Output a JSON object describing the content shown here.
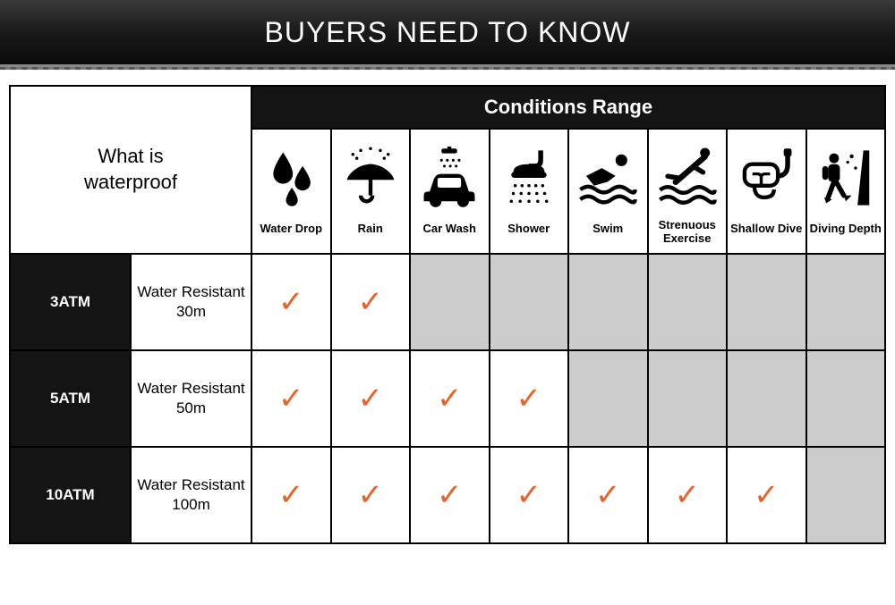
{
  "banner": {
    "title": "BUYERS NEED TO KNOW"
  },
  "table": {
    "corner_label": "What is\nwaterproof",
    "conditions_header": "Conditions Range",
    "check_color": "#e8632a",
    "grey_color": "#cccccc",
    "columns": [
      {
        "key": "water_drop",
        "label": "Water Drop",
        "icon": "water-drop-icon"
      },
      {
        "key": "rain",
        "label": "Rain",
        "icon": "rain-icon"
      },
      {
        "key": "car_wash",
        "label": "Car Wash",
        "icon": "car-wash-icon"
      },
      {
        "key": "shower",
        "label": "Shower",
        "icon": "shower-icon"
      },
      {
        "key": "swim",
        "label": "Swim",
        "icon": "swim-icon"
      },
      {
        "key": "strenuous",
        "label": "Strenuous Exercise",
        "icon": "strenuous-icon"
      },
      {
        "key": "shallow_dive",
        "label": "Shallow Dive",
        "icon": "shallow-dive-icon"
      },
      {
        "key": "diving_depth",
        "label": "Diving Depth",
        "icon": "diving-depth-icon"
      }
    ],
    "rows": [
      {
        "atm": "3ATM",
        "desc": "Water Resistant 30m",
        "cells": [
          "check",
          "check",
          "grey",
          "grey",
          "grey",
          "grey",
          "grey",
          "grey"
        ]
      },
      {
        "atm": "5ATM",
        "desc": "Water Resistant 50m",
        "cells": [
          "check",
          "check",
          "check",
          "check",
          "grey",
          "grey",
          "grey",
          "grey"
        ]
      },
      {
        "atm": "10ATM",
        "desc": "Water Resistant 100m",
        "cells": [
          "check",
          "check",
          "check",
          "check",
          "check",
          "check",
          "check",
          "grey"
        ]
      }
    ]
  }
}
